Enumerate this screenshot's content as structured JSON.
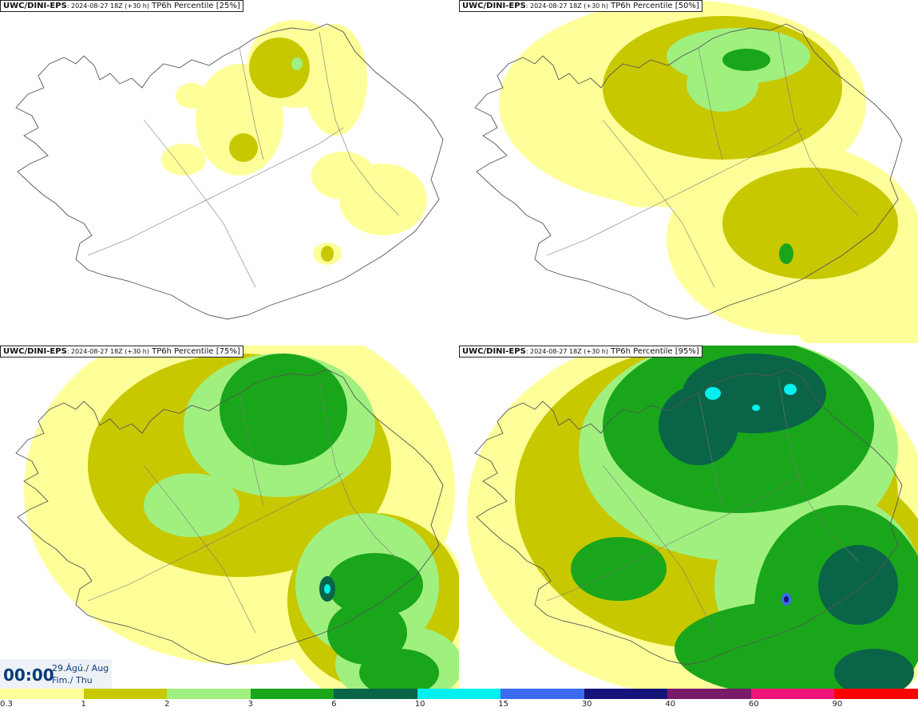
{
  "panels": [
    {
      "source": "UWC/DINI-EPS",
      "run": ": 2024-08-27 18Z (+30 h)",
      "product": " TP6h Percentile [25%]"
    },
    {
      "source": "UWC/DINI-EPS",
      "run": ": 2024-08-27 18Z (+30 h)",
      "product": " TP6h Percentile [50%]"
    },
    {
      "source": "UWC/DINI-EPS",
      "run": ": 2024-08-27 18Z (+30 h)",
      "product": " TP6h Percentile [75%]"
    },
    {
      "source": "UWC/DINI-EPS",
      "run": ": 2024-08-27 18Z (+30 h)",
      "product": " TP6h Percentile [95%]"
    }
  ],
  "valid_time": {
    "time": "00:00",
    "date_line1": "29.Ágú./ Aug",
    "date_line2": "Fim./ Thu"
  },
  "colorbar": {
    "colors": [
      "#ffff99",
      "#c8c800",
      "#a0f080",
      "#1aa61a",
      "#0a6448",
      "#00f0f0",
      "#3a6af0",
      "#14147a",
      "#7a1a6a",
      "#f0147a",
      "#ff0000"
    ],
    "tick_labels": [
      "0.3",
      "1",
      "2",
      "3",
      "6",
      "10",
      "15",
      "30",
      "40",
      "60",
      "90"
    ]
  }
}
